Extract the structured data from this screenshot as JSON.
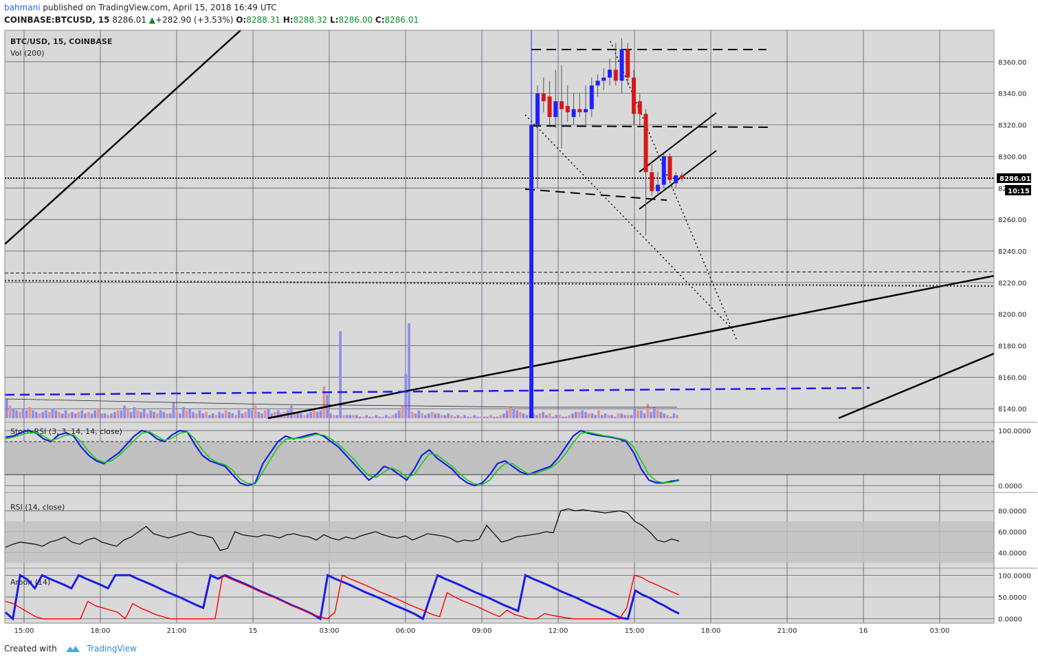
{
  "header": {
    "author": "bahmani",
    "published_text": "published on TradingView.com, April 15, 2018 16:49 UTC",
    "symbol": "COINBASE:BTCUSD, 15",
    "last": "8286.01",
    "change": "+282.90 (+3.53%)",
    "o_label": "O:",
    "o_value": "8288.31",
    "h_label": "H:",
    "h_value": "8288.32",
    "l_label": "L:",
    "l_value": "8286.00",
    "c_label": "C:",
    "c_value": "8286.01"
  },
  "colors": {
    "up": "#2020ff",
    "down": "#d81818",
    "vol_up": "#8f8fe8",
    "vol_down": "#e89090",
    "stoch_k": "#1a1ae6",
    "stoch_d": "#11cc11",
    "aroon_up": "#1a1ae6",
    "aroon_down": "#ff0000",
    "panel_bg": "#d9d9d9",
    "band": "#c0c0c0"
  },
  "chart_data": [
    {
      "type": "candlestick",
      "title": "BTC/USD, 15, COINBASE",
      "subtitle": "Vol (200)",
      "ylim": [
        8134,
        8380
      ],
      "y_ticks": [
        "8360.00",
        "8340.00",
        "8320.00",
        "8300.00",
        "8280.00",
        "8260.00",
        "8240.00",
        "8220.00",
        "8200.00",
        "8180.00",
        "8160.00",
        "8140.00"
      ],
      "x_ticks": [
        "15:00",
        "18:00",
        "21:00",
        "15",
        "03:00",
        "06:00",
        "09:00",
        "12:00",
        "15:00",
        "18:00",
        "21:00",
        "16",
        "03:00"
      ],
      "last_price_label": "8286.01",
      "countdown_label": "10:15",
      "candles": [
        [
          8320,
          8345,
          8280,
          8340
        ],
        [
          8340,
          8350,
          8328,
          8335
        ],
        [
          8338,
          8348,
          8320,
          8325
        ],
        [
          8325,
          8355,
          8318,
          8335
        ],
        [
          8335,
          8358,
          8305,
          8330
        ],
        [
          8332,
          8345,
          8322,
          8328
        ],
        [
          8325,
          8340,
          8320,
          8330
        ],
        [
          8330,
          8340,
          8325,
          8328
        ],
        [
          8328,
          8345,
          8320,
          8330
        ],
        [
          8330,
          8350,
          8325,
          8345
        ],
        [
          8345,
          8352,
          8338,
          8348
        ],
        [
          8348,
          8356,
          8342,
          8350
        ],
        [
          8350,
          8362,
          8345,
          8355
        ],
        [
          8355,
          8372,
          8345,
          8348
        ],
        [
          8348,
          8375,
          8340,
          8368
        ],
        [
          8368,
          8372,
          8345,
          8350
        ],
        [
          8350,
          8355,
          8320,
          8327
        ],
        [
          8335,
          8340,
          8320,
          8327
        ],
        [
          8327,
          8330,
          8250,
          8290
        ],
        [
          8290,
          8295,
          8275,
          8278
        ],
        [
          8278,
          8290,
          8275,
          8282
        ],
        [
          8282,
          8302,
          8280,
          8300
        ],
        [
          8300,
          8302,
          8283,
          8285
        ],
        [
          8283,
          8290,
          8280,
          8288
        ],
        [
          8288,
          8290,
          8284,
          8286.01
        ]
      ],
      "volumes": [
        12,
        8,
        6,
        5,
        4,
        6,
        5,
        7,
        5,
        4,
        3,
        4,
        5,
        4,
        6,
        5,
        4,
        3,
        5,
        3,
        4,
        3,
        4,
        5,
        3,
        4,
        3,
        5,
        6,
        3,
        3,
        2,
        3,
        4,
        5,
        5,
        8,
        6,
        4,
        7,
        5,
        4,
        6,
        3,
        5,
        4,
        3,
        5,
        4,
        3,
        3,
        10,
        4,
        3,
        7,
        5,
        6,
        4,
        3,
        5,
        3,
        4,
        2,
        3,
        2,
        4,
        3,
        5,
        4,
        3,
        2,
        5,
        3,
        4,
        6,
        5,
        8,
        4,
        3,
        5,
        6,
        3,
        4,
        5,
        3,
        4,
        5,
        8,
        4,
        3,
        3,
        2,
        3,
        4,
        5,
        4,
        5,
        20,
        15,
        3,
        2,
        2,
        55,
        2,
        2,
        2,
        2,
        2,
        1,
        1,
        2,
        1,
        1,
        2,
        1,
        1,
        2,
        1,
        2,
        3,
        5,
        8,
        28,
        60,
        4,
        3,
        5,
        3,
        2,
        3,
        4,
        3,
        3,
        2,
        2,
        3,
        2,
        1,
        2,
        1,
        2,
        1,
        1,
        2,
        1,
        1,
        1,
        1,
        2,
        1,
        1,
        2,
        3,
        5,
        7,
        6,
        5,
        4,
        3,
        2,
        4,
        3,
        2,
        3,
        4,
        2,
        3,
        1,
        2,
        2,
        1,
        1,
        2,
        3,
        4,
        4,
        5,
        4,
        3,
        3,
        2,
        5,
        2,
        3,
        2,
        2,
        1,
        3,
        3,
        2,
        2,
        2,
        6,
        5,
        5,
        3,
        9,
        4,
        7,
        5,
        4,
        3,
        2,
        1,
        3,
        2
      ]
    },
    {
      "type": "line",
      "title": "Stoch RSI (3, 3, 14, 14, close)",
      "ylim": [
        -10,
        110
      ],
      "y_ticks": [
        "100.0000",
        "0.0000"
      ],
      "series": [
        {
          "values": [
            88,
            90,
            96,
            100,
            96,
            85,
            80,
            92,
            96,
            90,
            70,
            55,
            45,
            40,
            50,
            60,
            75,
            90,
            100,
            96,
            85,
            80,
            92,
            100,
            98,
            75,
            55,
            45,
            40,
            35,
            20,
            5,
            0,
            5,
            40,
            60,
            80,
            90,
            85,
            88,
            92,
            95,
            90,
            80,
            70,
            55,
            40,
            25,
            10,
            20,
            35,
            30,
            20,
            10,
            30,
            55,
            65,
            50,
            40,
            30,
            15,
            5,
            0,
            5,
            20,
            40,
            45,
            35,
            25,
            20,
            25,
            30,
            35,
            50,
            70,
            90,
            100,
            95,
            92,
            90,
            88,
            85,
            80,
            60,
            30,
            10,
            5,
            5,
            8,
            10
          ]
        },
        {
          "values": [
            85,
            88,
            92,
            96,
            96,
            90,
            82,
            86,
            92,
            92,
            80,
            62,
            48,
            42,
            45,
            55,
            68,
            82,
            95,
            98,
            90,
            82,
            86,
            95,
            98,
            85,
            65,
            50,
            42,
            38,
            28,
            12,
            4,
            3,
            25,
            48,
            70,
            84,
            86,
            86,
            89,
            93,
            92,
            85,
            75,
            62,
            48,
            32,
            18,
            15,
            25,
            32,
            26,
            15,
            20,
            40,
            58,
            56,
            45,
            35,
            22,
            10,
            3,
            2,
            10,
            28,
            40,
            40,
            30,
            22,
            22,
            27,
            32,
            42,
            58,
            78,
            95,
            97,
            94,
            91,
            89,
            86,
            83,
            70,
            45,
            20,
            8,
            5,
            6,
            9
          ]
        }
      ]
    },
    {
      "type": "line",
      "title": "RSI (14, close)",
      "ylim": [
        25,
        95
      ],
      "y_ticks": [
        "80.0000",
        "60.0000",
        "40.0000"
      ],
      "band": [
        30,
        70
      ],
      "series": [
        {
          "values": [
            45,
            48,
            50,
            49,
            48,
            46,
            50,
            52,
            55,
            50,
            48,
            52,
            54,
            50,
            48,
            46,
            52,
            55,
            60,
            65,
            58,
            56,
            54,
            56,
            58,
            60,
            57,
            56,
            54,
            42,
            44,
            60,
            57,
            56,
            55,
            57,
            56,
            54,
            57,
            58,
            56,
            55,
            52,
            57,
            54,
            52,
            55,
            53,
            56,
            58,
            60,
            57,
            55,
            54,
            56,
            52,
            55,
            58,
            57,
            56,
            54,
            50,
            52,
            51,
            53,
            66,
            58,
            50,
            52,
            55,
            56,
            57,
            58,
            60,
            59,
            80,
            82,
            80,
            81,
            80,
            79,
            78,
            79,
            80,
            78,
            70,
            66,
            60,
            52,
            50,
            53,
            51
          ]
        }
      ]
    },
    {
      "type": "line",
      "title": "Aroon (14)",
      "ylim": [
        -10,
        110
      ],
      "y_ticks": [
        "100.0000",
        "50.0000",
        "0.0000"
      ],
      "series": [
        {
          "values": [
            15,
            0,
            100,
            90,
            70,
            100,
            92,
            85,
            78,
            70,
            100,
            92,
            85,
            78,
            70,
            100,
            100,
            100,
            92,
            85,
            78,
            70,
            62,
            55,
            48,
            40,
            32,
            25,
            100,
            92,
            100,
            92,
            85,
            78,
            70,
            62,
            55,
            48,
            40,
            32,
            25,
            18,
            10,
            0,
            100,
            92,
            85,
            78,
            70,
            62,
            55,
            48,
            40,
            32,
            25,
            18,
            10,
            0,
            50,
            100,
            92,
            85,
            78,
            70,
            62,
            55,
            48,
            40,
            32,
            25,
            18,
            100,
            92,
            85,
            78,
            70,
            62,
            55,
            48,
            40,
            32,
            25,
            18,
            10,
            2,
            0,
            65,
            55,
            48,
            38,
            30,
            20,
            12
          ]
        },
        {
          "values": [
            40,
            35,
            25,
            15,
            5,
            0,
            0,
            0,
            0,
            0,
            0,
            40,
            30,
            25,
            20,
            15,
            0,
            35,
            25,
            18,
            10,
            5,
            0,
            0,
            0,
            0,
            0,
            0,
            0,
            100,
            92,
            85,
            78,
            70,
            62,
            55,
            48,
            40,
            32,
            25,
            18,
            10,
            5,
            0,
            15,
            100,
            92,
            85,
            78,
            70,
            62,
            55,
            48,
            40,
            32,
            25,
            18,
            10,
            5,
            60,
            50,
            42,
            35,
            28,
            20,
            12,
            5,
            20,
            10,
            5,
            0,
            0,
            12,
            8,
            5,
            2,
            0,
            0,
            0,
            0,
            0,
            0,
            0,
            25,
            100,
            95,
            85,
            78,
            70,
            62,
            55
          ]
        }
      ]
    }
  ],
  "footer": {
    "created_with": "Created with",
    "brand": "TradingView"
  }
}
